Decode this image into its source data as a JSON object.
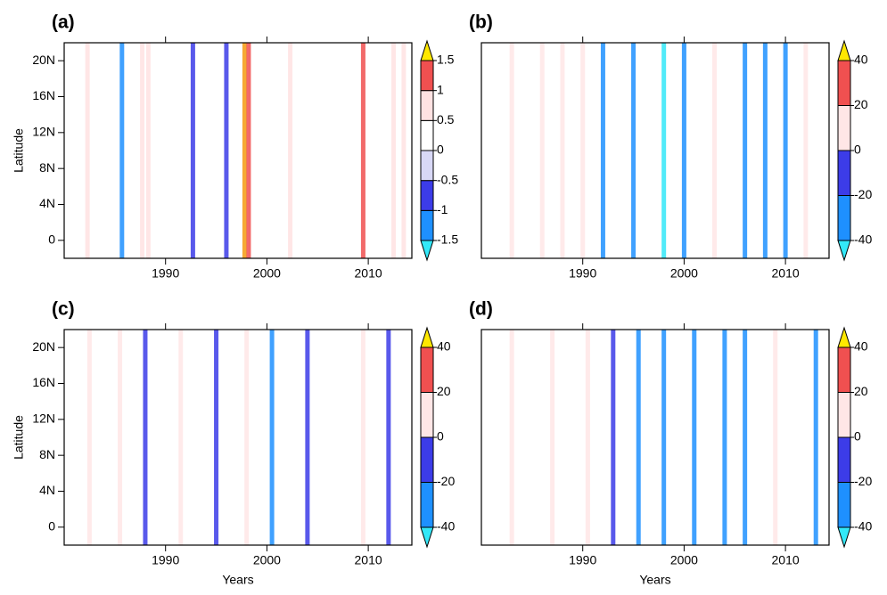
{
  "chart_data": [
    {
      "type": "heatmap",
      "title": "(a)",
      "ylabel": "Latitude",
      "x": [
        1982.3,
        1985.7,
        1987.7,
        1988.3,
        1992.7,
        1996,
        1997.8,
        1998.2,
        2002.3,
        2009.5,
        2012.5,
        2013.5
      ],
      "values": [
        0.6,
        -1.2,
        0.8,
        0.6,
        -0.9,
        -1.0,
        1.6,
        1.2,
        0.7,
        1.1,
        0.8,
        0.6
      ],
      "xlim": [
        1980,
        2014.3
      ],
      "xticks": [
        1990,
        2000,
        2010
      ],
      "ylim": [
        -2,
        22
      ],
      "yticks": [
        0,
        {
          "value": 4,
          "label": "4N"
        },
        {
          "value": 8,
          "label": "8N"
        },
        {
          "value": 12,
          "label": "12N"
        },
        {
          "value": 16,
          "label": "16N"
        },
        {
          "value": 20,
          "label": "20N"
        }
      ],
      "cticks": [
        -1.5,
        -1,
        -0.5,
        0,
        0.5,
        1,
        1.5
      ],
      "colors": [
        "#33e8f8",
        "#1e90ff",
        "#3c3ce8",
        "#d8d8f6",
        "#ffffff",
        "#ffe2e2",
        "#f05050",
        "#f59a10",
        "#ffe800"
      ]
    },
    {
      "type": "heatmap",
      "title": "(b)",
      "x": [
        1983,
        1986,
        1988,
        1990,
        1992,
        1995,
        1998,
        2000,
        2003,
        2006,
        2008,
        2010,
        2012
      ],
      "values": [
        35,
        25,
        20,
        30,
        -30,
        -25,
        -45,
        -35,
        25,
        -25,
        -30,
        -40,
        20
      ],
      "xlim": [
        1980,
        2014.3
      ],
      "xticks": [
        1990,
        2000,
        2010
      ],
      "ylim": [
        -2,
        22
      ],
      "cticks": [
        -40,
        -20,
        0,
        20,
        40
      ],
      "colors": [
        "#33e8f8",
        "#1e90ff",
        "#3c3ce8",
        "#e4e4f8",
        "#ffe6e6",
        "#f05050",
        "#f59a10",
        "#ffe800"
      ]
    },
    {
      "type": "heatmap",
      "title": "(c)",
      "ylabel": "Latitude",
      "xlabel": "Years",
      "x": [
        1982.5,
        1985.5,
        1988,
        1991.5,
        1995,
        1998,
        2000.5,
        2004,
        2009.5,
        2012
      ],
      "values": [
        30,
        25,
        -20,
        22,
        -15,
        28,
        -22,
        -18,
        25,
        -15
      ],
      "xlim": [
        1980,
        2014.3
      ],
      "xticks": [
        1990,
        2000,
        2010
      ],
      "ylim": [
        -2,
        22
      ],
      "yticks": [
        0,
        {
          "value": 4,
          "label": "4N"
        },
        {
          "value": 8,
          "label": "8N"
        },
        {
          "value": 12,
          "label": "12N"
        },
        {
          "value": 16,
          "label": "16N"
        },
        {
          "value": 20,
          "label": "20N"
        }
      ],
      "cticks": [
        -40,
        -20,
        0,
        20,
        40
      ],
      "colors": [
        "#33e8f8",
        "#1e90ff",
        "#3c3ce8",
        "#e4e4f8",
        "#ffe6e6",
        "#f05050",
        "#f59a10",
        "#ffe800"
      ]
    },
    {
      "type": "heatmap",
      "title": "(d)",
      "xlabel": "Years",
      "x": [
        1983,
        1987,
        1990.5,
        1993,
        1995.5,
        1998,
        2001,
        2004,
        2006,
        2009,
        2013
      ],
      "values": [
        30,
        20,
        35,
        -20,
        -30,
        -40,
        -25,
        -30,
        -35,
        20,
        -40
      ],
      "xlim": [
        1980,
        2014.3
      ],
      "xticks": [
        1990,
        2000,
        2010
      ],
      "ylim": [
        -2,
        22
      ],
      "cticks": [
        -40,
        -20,
        0,
        20,
        40
      ],
      "colors": [
        "#33e8f8",
        "#1e90ff",
        "#3c3ce8",
        "#e4e4f8",
        "#ffe6e6",
        "#f05050",
        "#f59a10",
        "#ffe800"
      ]
    }
  ]
}
